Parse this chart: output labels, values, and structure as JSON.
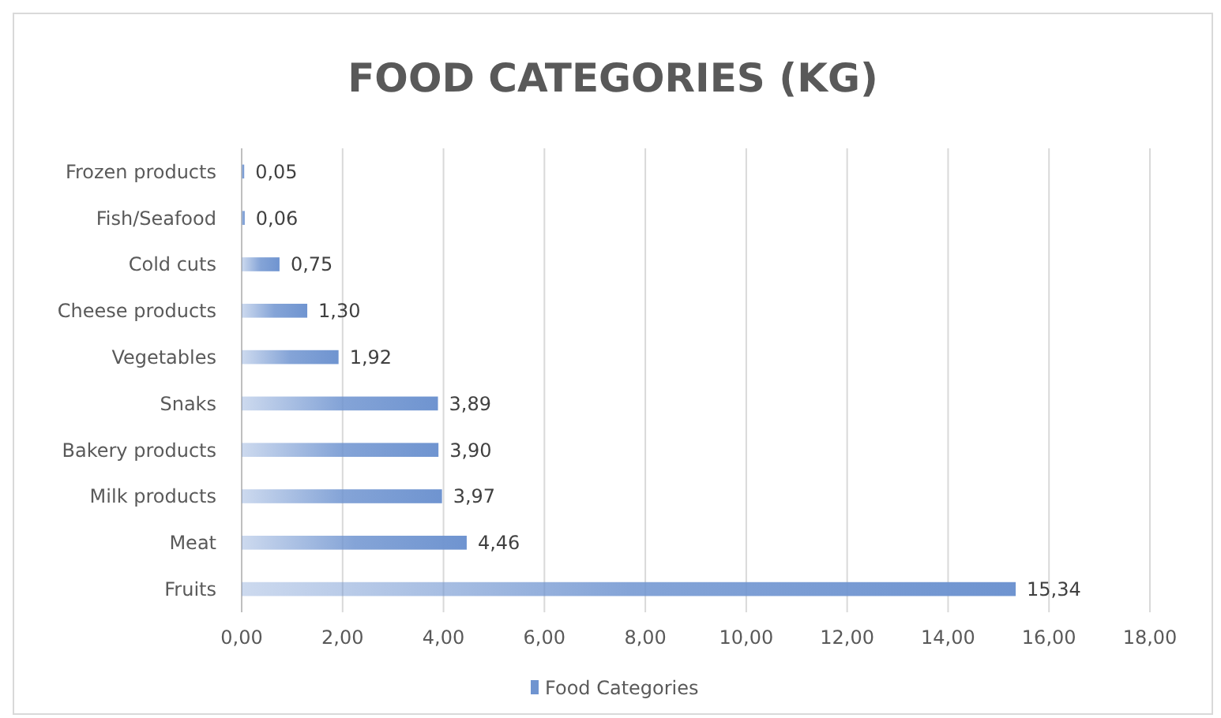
{
  "chart_data": {
    "type": "bar",
    "orientation": "horizontal",
    "title": "FOOD CATEGORIES (KG)",
    "categories": [
      "Frozen products",
      "Fish/Seafood",
      "Cold cuts",
      "Cheese products",
      "Vegetables",
      "Snaks",
      "Bakery products",
      "Milk products",
      "Meat",
      "Fruits"
    ],
    "series": [
      {
        "name": "Food Categories",
        "color": "#6f94d0",
        "values": [
          0.05,
          0.06,
          0.75,
          1.3,
          1.92,
          3.89,
          3.9,
          3.97,
          4.46,
          15.34
        ],
        "value_labels": [
          "0,05",
          "0,06",
          "0,75",
          "1,30",
          "1,92",
          "3,89",
          "3,90",
          "3,97",
          "4,46",
          "15,34"
        ]
      }
    ],
    "xlim": [
      0,
      18
    ],
    "xticks": [
      {
        "value": 0,
        "label": "0,00"
      },
      {
        "value": 2,
        "label": "2,00"
      },
      {
        "value": 4,
        "label": "4,00"
      },
      {
        "value": 6,
        "label": "6,00"
      },
      {
        "value": 8,
        "label": "8,00"
      },
      {
        "value": 10,
        "label": "10,00"
      },
      {
        "value": 12,
        "label": "12,00"
      },
      {
        "value": 14,
        "label": "14,00"
      },
      {
        "value": 16,
        "label": "16,00"
      },
      {
        "value": 18,
        "label": "18,00"
      }
    ],
    "grid": "x",
    "legend": "bottom"
  }
}
